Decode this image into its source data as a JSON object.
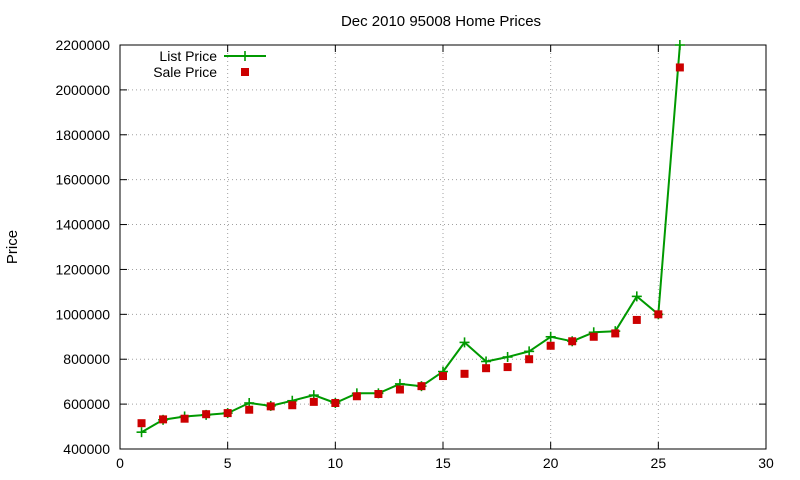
{
  "chart_data": {
    "type": "line",
    "title": "Dec 2010 95008 Home Prices",
    "xlabel": "",
    "ylabel": "Price",
    "xlim": [
      0,
      30
    ],
    "ylim": [
      400000,
      2200000
    ],
    "x_ticks": [
      0,
      5,
      10,
      15,
      20,
      25,
      30
    ],
    "y_ticks": [
      400000,
      600000,
      800000,
      1000000,
      1200000,
      1400000,
      1600000,
      1800000,
      2000000,
      2200000
    ],
    "grid": true,
    "legend_position": "top-left",
    "series": [
      {
        "name": "List Price",
        "style": "line-plus",
        "color": "#009900",
        "x": [
          1,
          2,
          3,
          4,
          5,
          6,
          7,
          8,
          9,
          10,
          11,
          12,
          13,
          14,
          15,
          16,
          17,
          18,
          19,
          20,
          21,
          22,
          23,
          24,
          25,
          26
        ],
        "values": [
          475000,
          530000,
          545000,
          552000,
          560000,
          605000,
          592000,
          615000,
          640000,
          605000,
          648000,
          648000,
          690000,
          680000,
          745000,
          875000,
          790000,
          810000,
          835000,
          900000,
          880000,
          920000,
          925000,
          1080000,
          1000000,
          2200000
        ]
      },
      {
        "name": "Sale Price",
        "style": "points-square",
        "color": "#cc0000",
        "x": [
          1,
          2,
          3,
          4,
          5,
          6,
          7,
          8,
          9,
          10,
          11,
          12,
          13,
          14,
          15,
          16,
          17,
          18,
          19,
          20,
          21,
          22,
          23,
          24,
          25,
          26
        ],
        "values": [
          515000,
          532000,
          535000,
          555000,
          560000,
          575000,
          590000,
          595000,
          610000,
          605000,
          635000,
          645000,
          665000,
          680000,
          725000,
          735000,
          760000,
          765000,
          800000,
          860000,
          880000,
          900000,
          915000,
          975000,
          1000000,
          2100000
        ]
      }
    ]
  }
}
